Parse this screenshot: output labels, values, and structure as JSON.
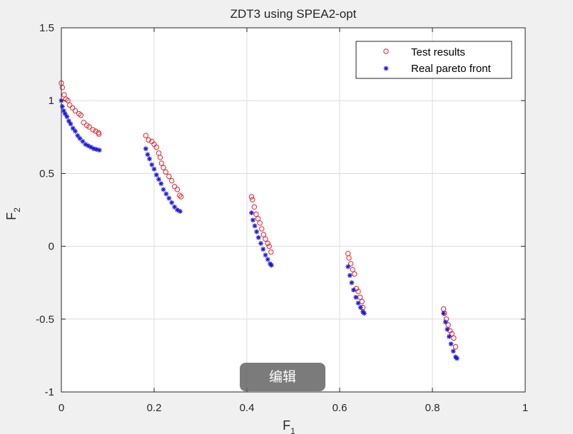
{
  "edit_button_label": "编辑",
  "colors": {
    "test": "#e8202a",
    "real": "#1a1adf",
    "grid": "#dcdcdc",
    "axes": "#262626",
    "plot_bg": "#ffffff"
  },
  "chart_data": {
    "type": "scatter",
    "title": "ZDT3 using SPEA2-opt",
    "xlabel": "F",
    "xlabel_sub": "1",
    "ylabel": "F",
    "ylabel_sub": "2",
    "xlim": [
      0,
      1
    ],
    "ylim": [
      -1,
      1.5
    ],
    "xticks": [
      "0",
      "0.2",
      "0.4",
      "0.6",
      "0.8",
      "1"
    ],
    "yticks": [
      "1.5",
      "1",
      "0.5",
      "0",
      "-0.5",
      "-1"
    ],
    "grid": true,
    "legend_position": "top-right",
    "series": [
      {
        "name": "Test results",
        "marker": "circle",
        "color": "#e8202a",
        "points": [
          [
            0.0,
            1.12
          ],
          [
            0.002,
            1.09
          ],
          [
            0.006,
            1.04
          ],
          [
            0.01,
            1.01
          ],
          [
            0.014,
            1.0
          ],
          [
            0.018,
            0.97
          ],
          [
            0.024,
            0.95
          ],
          [
            0.03,
            0.93
          ],
          [
            0.038,
            0.91
          ],
          [
            0.042,
            0.9
          ],
          [
            0.048,
            0.85
          ],
          [
            0.055,
            0.83
          ],
          [
            0.06,
            0.82
          ],
          [
            0.068,
            0.8
          ],
          [
            0.074,
            0.79
          ],
          [
            0.08,
            0.78
          ],
          [
            0.081,
            0.77
          ],
          [
            0.182,
            0.76
          ],
          [
            0.188,
            0.73
          ],
          [
            0.195,
            0.72
          ],
          [
            0.2,
            0.7
          ],
          [
            0.205,
            0.68
          ],
          [
            0.21,
            0.64
          ],
          [
            0.213,
            0.61
          ],
          [
            0.216,
            0.57
          ],
          [
            0.22,
            0.54
          ],
          [
            0.225,
            0.51
          ],
          [
            0.232,
            0.48
          ],
          [
            0.238,
            0.45
          ],
          [
            0.244,
            0.41
          ],
          [
            0.25,
            0.39
          ],
          [
            0.255,
            0.35
          ],
          [
            0.258,
            0.34
          ],
          [
            0.41,
            0.34
          ],
          [
            0.412,
            0.32
          ],
          [
            0.416,
            0.27
          ],
          [
            0.42,
            0.22
          ],
          [
            0.424,
            0.19
          ],
          [
            0.428,
            0.16
          ],
          [
            0.432,
            0.12
          ],
          [
            0.436,
            0.08
          ],
          [
            0.44,
            0.05
          ],
          [
            0.445,
            0.02
          ],
          [
            0.448,
            0.0
          ],
          [
            0.452,
            -0.04
          ],
          [
            0.618,
            -0.05
          ],
          [
            0.62,
            -0.08
          ],
          [
            0.624,
            -0.12
          ],
          [
            0.628,
            -0.16
          ],
          [
            0.632,
            -0.19
          ],
          [
            0.636,
            -0.29
          ],
          [
            0.64,
            -0.31
          ],
          [
            0.644,
            -0.35
          ],
          [
            0.648,
            -0.38
          ],
          [
            0.65,
            -0.42
          ],
          [
            0.824,
            -0.43
          ],
          [
            0.826,
            -0.46
          ],
          [
            0.83,
            -0.5
          ],
          [
            0.834,
            -0.54
          ],
          [
            0.838,
            -0.58
          ],
          [
            0.842,
            -0.6
          ],
          [
            0.846,
            -0.63
          ],
          [
            0.85,
            -0.69
          ]
        ]
      },
      {
        "name": "Real pareto front",
        "marker": "asterisk",
        "color": "#1a1adf",
        "points": [
          [
            0.0,
            1.0
          ],
          [
            0.002,
            0.96
          ],
          [
            0.005,
            0.93
          ],
          [
            0.008,
            0.91
          ],
          [
            0.012,
            0.89
          ],
          [
            0.016,
            0.86
          ],
          [
            0.02,
            0.84
          ],
          [
            0.025,
            0.81
          ],
          [
            0.03,
            0.79
          ],
          [
            0.035,
            0.76
          ],
          [
            0.04,
            0.74
          ],
          [
            0.046,
            0.72
          ],
          [
            0.052,
            0.7
          ],
          [
            0.058,
            0.69
          ],
          [
            0.064,
            0.68
          ],
          [
            0.07,
            0.67
          ],
          [
            0.076,
            0.665
          ],
          [
            0.082,
            0.66
          ],
          [
            0.182,
            0.67
          ],
          [
            0.186,
            0.63
          ],
          [
            0.19,
            0.6
          ],
          [
            0.195,
            0.56
          ],
          [
            0.2,
            0.53
          ],
          [
            0.205,
            0.49
          ],
          [
            0.21,
            0.46
          ],
          [
            0.215,
            0.43
          ],
          [
            0.22,
            0.39
          ],
          [
            0.226,
            0.36
          ],
          [
            0.232,
            0.33
          ],
          [
            0.238,
            0.3
          ],
          [
            0.244,
            0.27
          ],
          [
            0.25,
            0.25
          ],
          [
            0.256,
            0.24
          ],
          [
            0.41,
            0.23
          ],
          [
            0.413,
            0.18
          ],
          [
            0.417,
            0.14
          ],
          [
            0.421,
            0.1
          ],
          [
            0.425,
            0.06
          ],
          [
            0.43,
            0.02
          ],
          [
            0.435,
            -0.02
          ],
          [
            0.44,
            -0.06
          ],
          [
            0.445,
            -0.09
          ],
          [
            0.45,
            -0.12
          ],
          [
            0.453,
            -0.13
          ],
          [
            0.618,
            -0.14
          ],
          [
            0.622,
            -0.2
          ],
          [
            0.626,
            -0.25
          ],
          [
            0.63,
            -0.3
          ],
          [
            0.635,
            -0.35
          ],
          [
            0.64,
            -0.39
          ],
          [
            0.645,
            -0.42
          ],
          [
            0.65,
            -0.45
          ],
          [
            0.653,
            -0.46
          ],
          [
            0.824,
            -0.46
          ],
          [
            0.828,
            -0.52
          ],
          [
            0.832,
            -0.57
          ],
          [
            0.836,
            -0.62
          ],
          [
            0.84,
            -0.67
          ],
          [
            0.845,
            -0.72
          ],
          [
            0.85,
            -0.76
          ],
          [
            0.853,
            -0.77
          ]
        ]
      }
    ]
  }
}
